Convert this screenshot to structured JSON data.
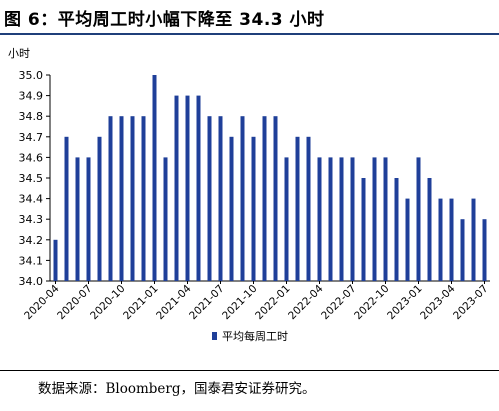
{
  "figure_title": "图 6：平均周工时小幅下降至 34.3 小时",
  "source_note": "数据来源：Bloomberg，国泰君安证券研究。",
  "colors": {
    "bar": "#1f3f99",
    "title_rule": "#1f3f7a",
    "axis": "#000000"
  },
  "chart_data": {
    "type": "bar",
    "ylabel": "小时",
    "xlabel": "",
    "ylim": [
      34.0,
      35.0
    ],
    "yticks": [
      "35.0",
      "34.9",
      "34.8",
      "34.7",
      "34.6",
      "34.5",
      "34.4",
      "34.3",
      "34.2",
      "34.1",
      "34.0"
    ],
    "xtick_labels": [
      "2020-04",
      "2020-07",
      "2020-10",
      "2021-01",
      "2021-04",
      "2021-07",
      "2021-10",
      "2022-01",
      "2022-04",
      "2022-07",
      "2022-10",
      "2023-01",
      "2023-04",
      "2023-07"
    ],
    "grid": false,
    "legend_position": "bottom-center",
    "series": [
      {
        "name": "平均每周工时",
        "categories": [
          "2020-04",
          "2020-05",
          "2020-06",
          "2020-07",
          "2020-08",
          "2020-09",
          "2020-10",
          "2020-11",
          "2020-12",
          "2021-01",
          "2021-02",
          "2021-03",
          "2021-04",
          "2021-05",
          "2021-06",
          "2021-07",
          "2021-08",
          "2021-09",
          "2021-10",
          "2021-11",
          "2021-12",
          "2022-01",
          "2022-02",
          "2022-03",
          "2022-04",
          "2022-05",
          "2022-06",
          "2022-07",
          "2022-08",
          "2022-09",
          "2022-10",
          "2022-11",
          "2022-12",
          "2023-01",
          "2023-02",
          "2023-03",
          "2023-04",
          "2023-05",
          "2023-06",
          "2023-07"
        ],
        "values": [
          34.2,
          34.7,
          34.6,
          34.6,
          34.7,
          34.8,
          34.8,
          34.8,
          34.8,
          35.0,
          34.6,
          34.9,
          34.9,
          34.9,
          34.8,
          34.8,
          34.7,
          34.8,
          34.7,
          34.8,
          34.8,
          34.6,
          34.7,
          34.7,
          34.6,
          34.6,
          34.6,
          34.6,
          34.5,
          34.6,
          34.6,
          34.5,
          34.4,
          34.6,
          34.5,
          34.4,
          34.4,
          34.3,
          34.4,
          34.3
        ]
      }
    ]
  }
}
